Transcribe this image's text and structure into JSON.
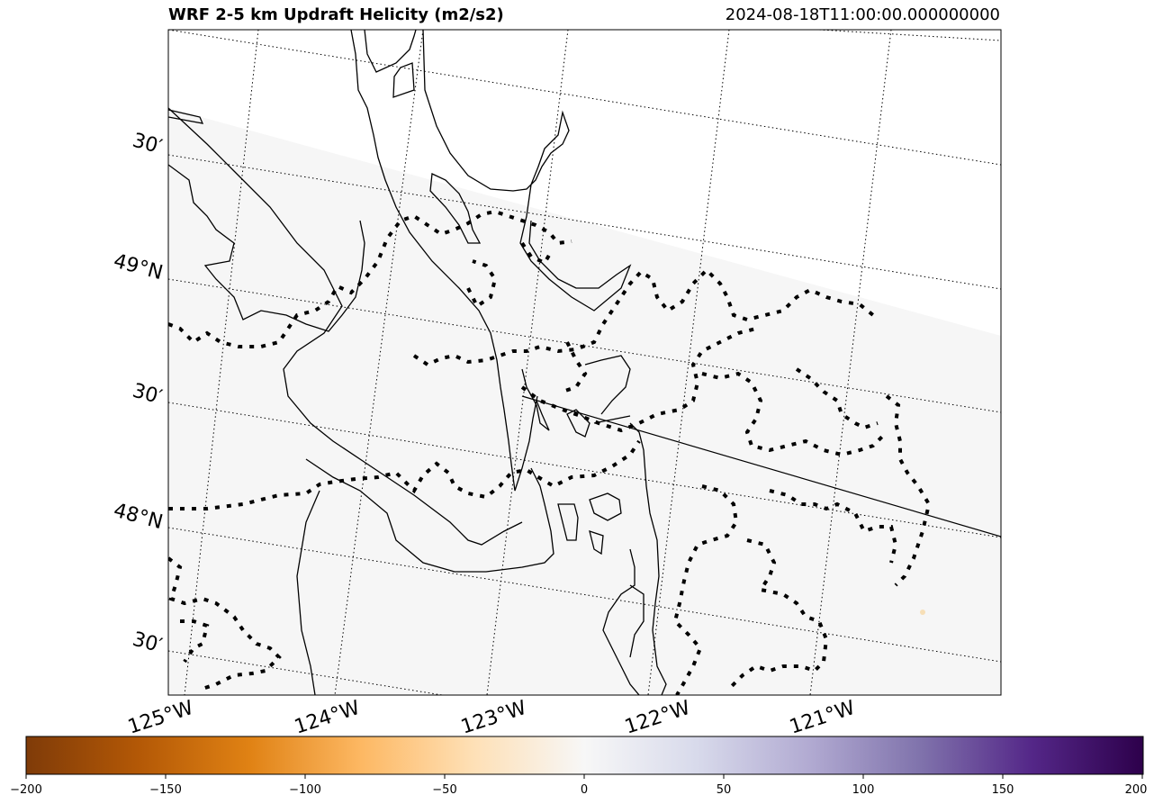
{
  "title": "WRF 2-5 km Updraft Helicity (m2/s2)",
  "timestamp": "2024-08-18T11:00:00.000000000",
  "map": {
    "lat_labels": [
      "30′",
      "49°N",
      "30′",
      "48°N",
      "30′"
    ],
    "lon_labels": [
      "125°W",
      "124°W",
      "123°W",
      "122°W",
      "121°W"
    ],
    "field_value_background": 0,
    "no_data_region": "upper-right"
  },
  "colorbar": {
    "colormap": "PuOr",
    "min": -200,
    "max": 200,
    "tick_labels": [
      "−200",
      "−150",
      "−100",
      "−50",
      "0",
      "50",
      "100",
      "150",
      "200"
    ],
    "colors": [
      "#7f3b08",
      "#b35806",
      "#e08214",
      "#fdb863",
      "#fee0b6",
      "#f7f7f7",
      "#d8daeb",
      "#b2abd2",
      "#8073ac",
      "#542788",
      "#2d004b"
    ]
  }
}
